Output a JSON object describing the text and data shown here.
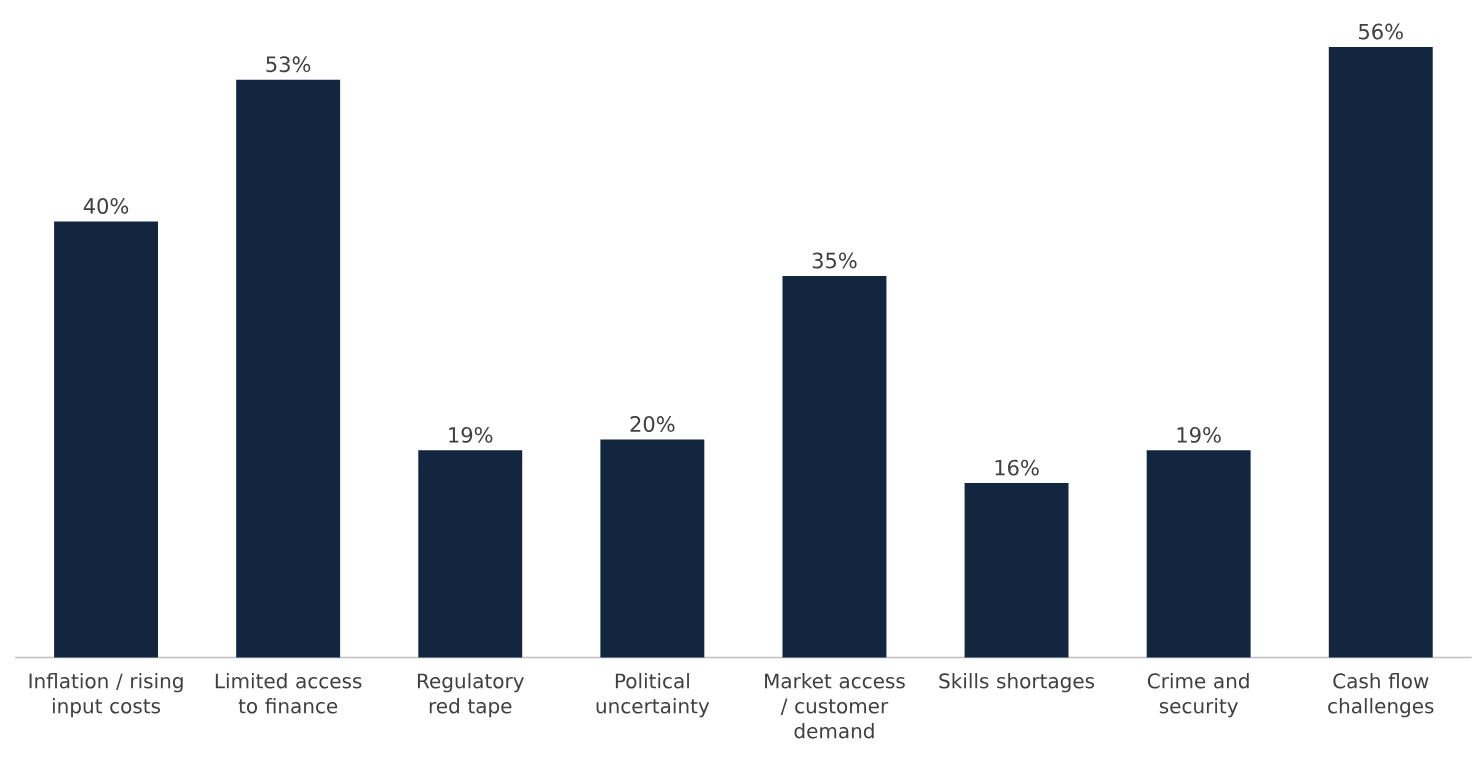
{
  "chart_data": {
    "type": "bar",
    "categories": [
      "Inflation / rising input costs",
      "Limited access to finance",
      "Regulatory red tape",
      "Political uncertainty",
      "Market access / customer demand",
      "Skills shortages",
      "Crime and security",
      "Cash flow challenges"
    ],
    "values": [
      40,
      53,
      19,
      20,
      35,
      16,
      19,
      56
    ],
    "value_labels": [
      "40%",
      "53%",
      "19%",
      "20%",
      "35%",
      "16%",
      "19%",
      "56%"
    ],
    "color": "#12263f"
  }
}
